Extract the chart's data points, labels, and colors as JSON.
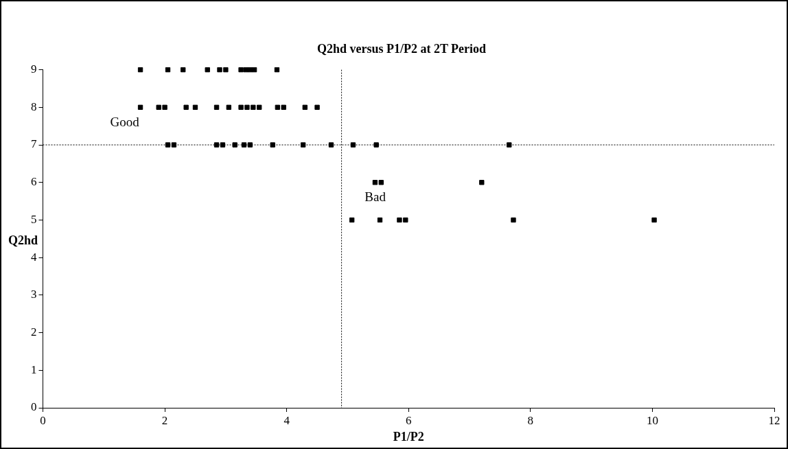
{
  "chart_data": {
    "type": "scatter",
    "title": "Q2hd versus P1/P2 at 2T Period",
    "xlabel": "P1/P2",
    "ylabel": "Q2hd",
    "series": [
      {
        "color": "#000000",
        "x": [
          1.6,
          2.05,
          2.3,
          2.7,
          2.9,
          3.0,
          3.25,
          3.33,
          3.4,
          3.47,
          3.84,
          1.6,
          1.9,
          2.0,
          2.35,
          2.5,
          2.85,
          3.05,
          3.25,
          3.35,
          3.45,
          3.55,
          3.85,
          3.95,
          4.3,
          4.5,
          2.05,
          2.15,
          2.85,
          2.95,
          3.15,
          3.3,
          3.4,
          3.77,
          4.27,
          4.73,
          5.09,
          5.47,
          7.65,
          5.45,
          5.55,
          7.2,
          5.07,
          5.53,
          5.85,
          5.95,
          7.72,
          10.03
        ],
        "values": [
          9,
          9,
          9,
          9,
          9,
          9,
          9,
          9,
          9,
          9,
          9,
          8,
          8,
          8,
          8,
          8,
          8,
          8,
          8,
          8,
          8,
          8,
          8,
          8,
          8,
          8,
          7,
          7,
          7,
          7,
          7,
          7,
          7,
          7,
          7,
          7,
          7,
          7,
          7,
          6,
          6,
          6,
          5,
          5,
          5,
          5,
          5,
          5
        ]
      }
    ],
    "xlim": [
      0,
      12
    ],
    "xticks": [
      0,
      2,
      4,
      6,
      8,
      10,
      12
    ],
    "ylim": [
      0,
      9
    ],
    "yticks": [
      0,
      1,
      2,
      3,
      4,
      5,
      6,
      7,
      8,
      9
    ],
    "grid": false,
    "legend": false,
    "marker": "square",
    "ref_lines": [
      {
        "axis": "y",
        "value": 7,
        "line_style": "dotted",
        "color": "#000000"
      },
      {
        "axis": "x",
        "value": 4.9,
        "line_style": "dotted",
        "color": "#000000"
      }
    ],
    "annotations": [
      "Good",
      "Bad"
    ]
  }
}
